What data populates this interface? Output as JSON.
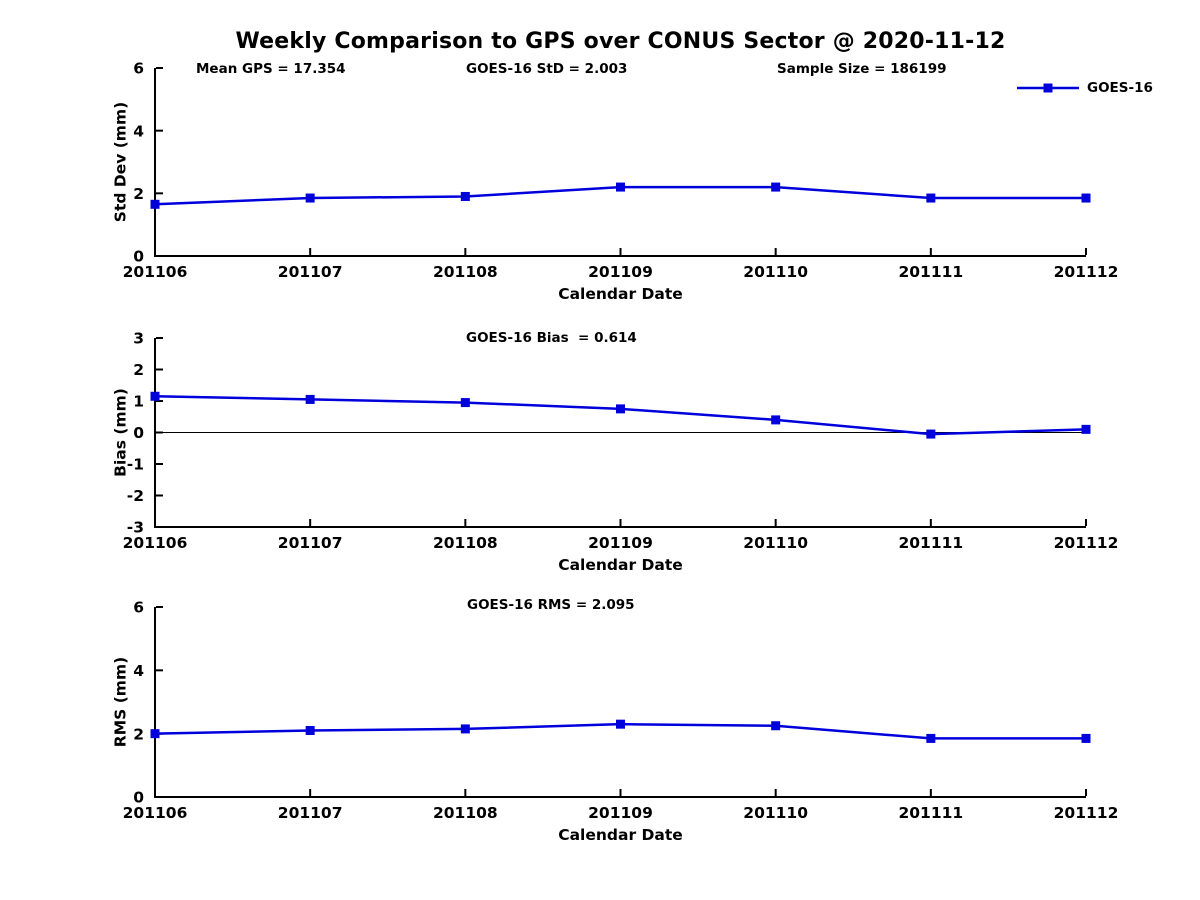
{
  "figure": {
    "title": "Weekly Comparison to GPS over CONUS Sector @ 2020-11-12",
    "background_color": "#ffffff",
    "text_color": "#000000",
    "line_color": "#0000dd",
    "axis_color": "#000000"
  },
  "legend": {
    "label": "GOES-16",
    "marker": "square",
    "position": "top-right"
  },
  "chart_data": [
    {
      "type": "line",
      "title": "",
      "annotations": [
        "Mean GPS = 17.354",
        "GOES-16 StD = 2.003",
        "Sample Size = 186199"
      ],
      "xlabel": "Calendar Date",
      "ylabel": "Std Dev (mm)",
      "categories": [
        "201106",
        "201107",
        "201108",
        "201109",
        "201110",
        "201111",
        "201112"
      ],
      "series": [
        {
          "name": "GOES-16",
          "values": [
            1.65,
            1.85,
            1.9,
            2.2,
            2.2,
            1.85,
            1.85
          ]
        }
      ],
      "ylim": [
        0,
        6
      ],
      "yticks": [
        0,
        2,
        4,
        6
      ],
      "grid": false,
      "zero_line": false,
      "legend_position": "top-right"
    },
    {
      "type": "line",
      "title": "",
      "annotations": [
        "GOES-16 Bias  = 0.614"
      ],
      "xlabel": "Calendar Date",
      "ylabel": "Bias (mm)",
      "categories": [
        "201106",
        "201107",
        "201108",
        "201109",
        "201110",
        "201111",
        "201112"
      ],
      "series": [
        {
          "name": "GOES-16",
          "values": [
            1.15,
            1.05,
            0.95,
            0.75,
            0.4,
            -0.05,
            0.1
          ]
        }
      ],
      "ylim": [
        -3,
        3
      ],
      "yticks": [
        -3,
        -2,
        -1,
        0,
        1,
        2,
        3
      ],
      "grid": false,
      "zero_line": true,
      "legend_position": "none"
    },
    {
      "type": "line",
      "title": "",
      "annotations": [
        "GOES-16 RMS = 2.095"
      ],
      "xlabel": "Calendar Date",
      "ylabel": "RMS (mm)",
      "categories": [
        "201106",
        "201107",
        "201108",
        "201109",
        "201110",
        "201111",
        "201112"
      ],
      "series": [
        {
          "name": "GOES-16",
          "values": [
            2.0,
            2.1,
            2.15,
            2.3,
            2.25,
            1.85,
            1.85
          ]
        }
      ],
      "ylim": [
        0,
        6
      ],
      "yticks": [
        0,
        2,
        4,
        6
      ],
      "grid": false,
      "zero_line": false,
      "legend_position": "none"
    }
  ]
}
